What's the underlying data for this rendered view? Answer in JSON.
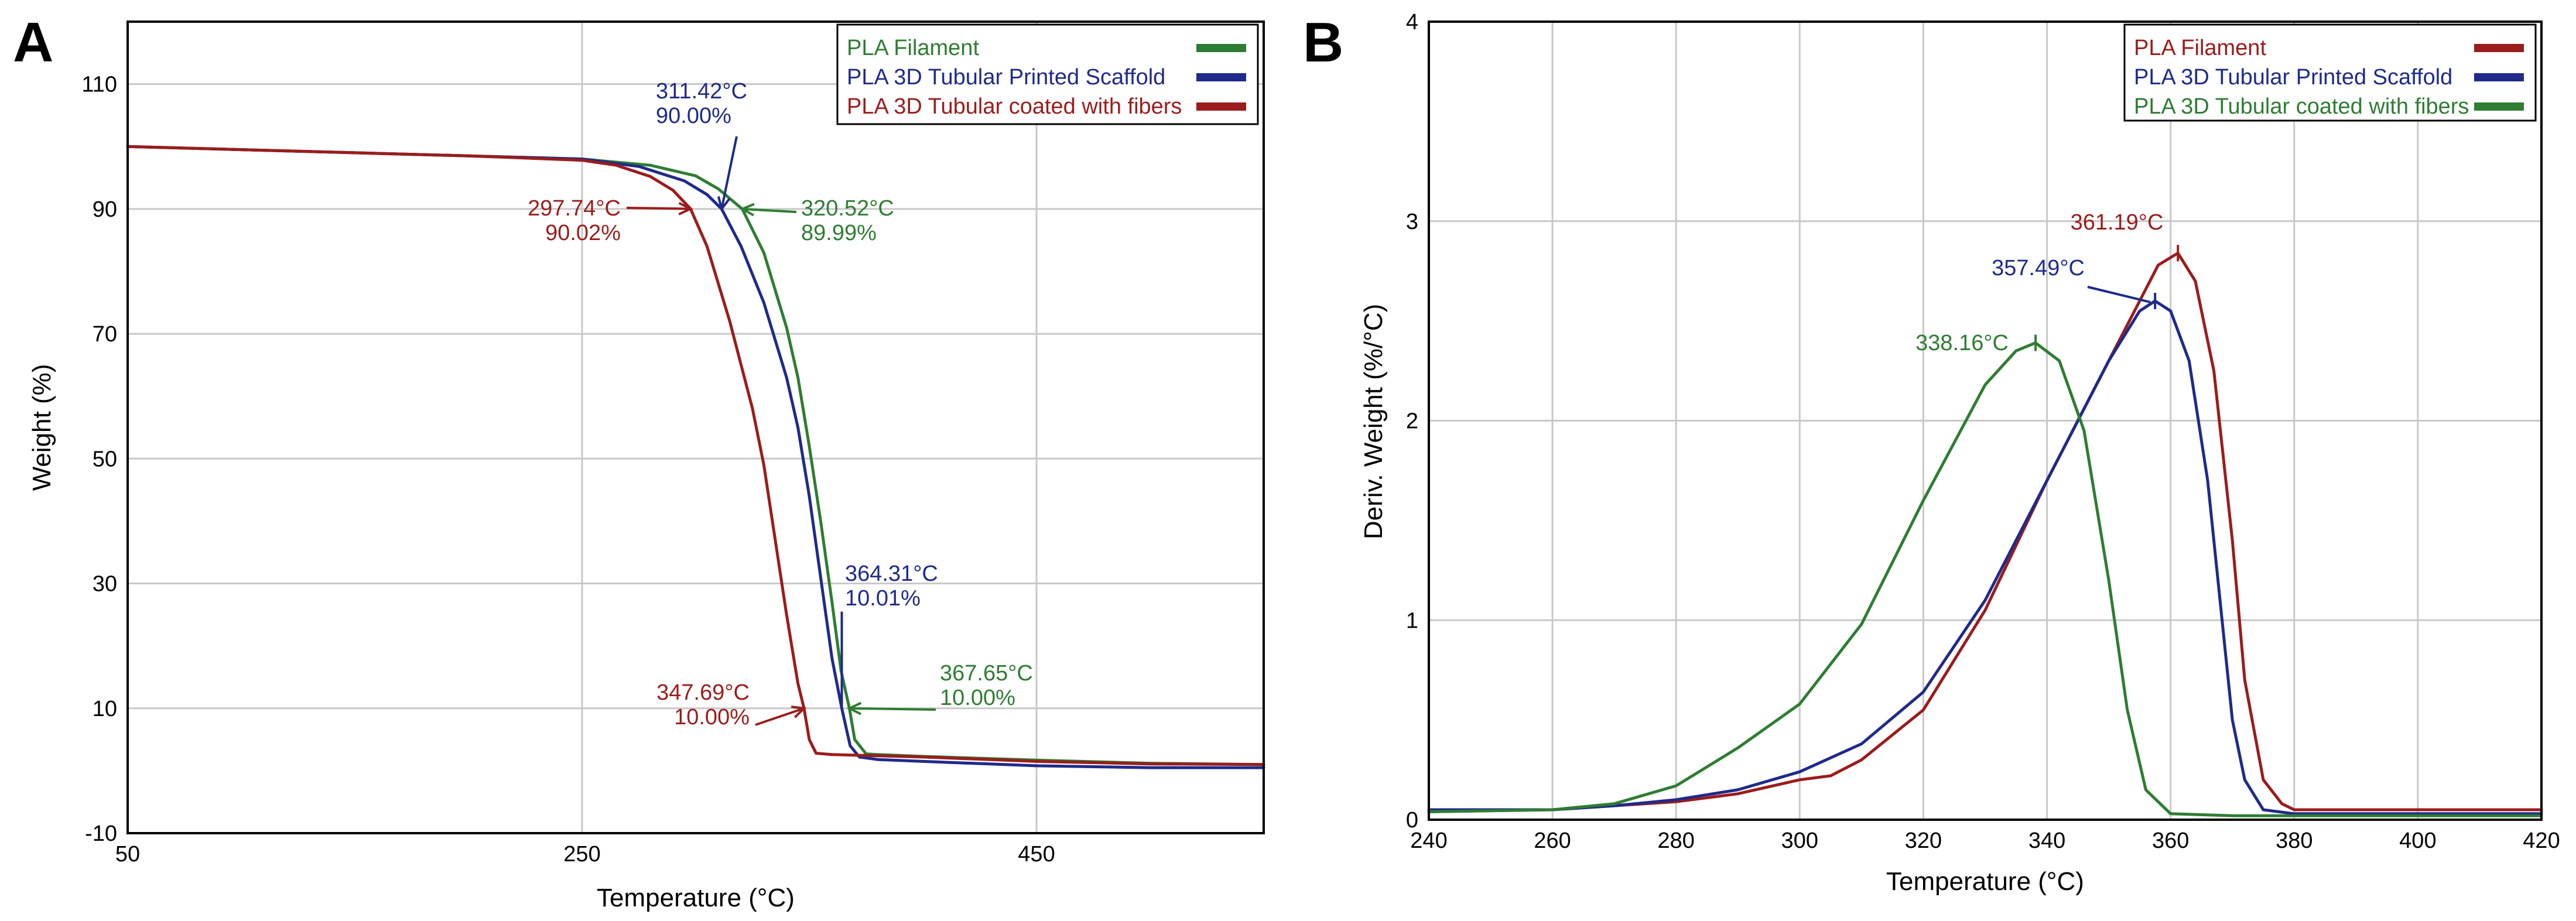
{
  "chart_data": [
    {
      "type": "line",
      "panel_label": "A",
      "xlabel": "Temperature (°C)",
      "ylabel": "Weight (%)",
      "xlim": [
        50,
        550
      ],
      "ylim": [
        -10,
        120
      ],
      "xticks": [
        50,
        250,
        450
      ],
      "yticks": [
        -10,
        10,
        30,
        50,
        70,
        90,
        110
      ],
      "legend_position": "top-right",
      "series": [
        {
          "name": "PLA Filament",
          "color": "#2e7d32",
          "x": [
            50,
            100,
            150,
            200,
            250,
            280,
            300,
            310,
            320.52,
            330,
            340,
            345,
            350,
            355,
            360,
            364,
            367.65,
            370,
            375,
            380,
            400,
            450,
            500,
            550
          ],
          "y": [
            100,
            99.5,
            99,
            98.5,
            98,
            97,
            95.3,
            93.2,
            89.99,
            83,
            71,
            63,
            52,
            40,
            27,
            16,
            10,
            5,
            2.7,
            2.6,
            2.3,
            1.7,
            1.2,
            1
          ]
        },
        {
          "name": "PLA 3D Tubular Printed Scaffold",
          "color": "#1f2a8a",
          "x": [
            50,
            100,
            150,
            200,
            250,
            275,
            295,
            305,
            311.42,
            320,
            330,
            340,
            345,
            350,
            355,
            360,
            364.31,
            368,
            372,
            380,
            400,
            450,
            500,
            550
          ],
          "y": [
            100,
            99.5,
            99,
            98.5,
            98,
            96.8,
            94.5,
            92.3,
            90,
            84,
            75,
            63,
            55,
            44,
            31,
            18,
            10.01,
            4,
            2.2,
            1.8,
            1.5,
            0.8,
            0.5,
            0.5
          ]
        },
        {
          "name": "PLA 3D Tubular coated with fibers",
          "color": "#9b1c1c",
          "x": [
            50,
            100,
            150,
            200,
            250,
            265,
            280,
            290,
            297.74,
            305,
            315,
            325,
            330,
            335,
            340,
            345,
            347.69,
            350,
            353,
            360,
            400,
            450,
            500,
            550
          ],
          "y": [
            100,
            99.5,
            99,
            98.5,
            97.8,
            97,
            95.2,
            93,
            90.02,
            84,
            72,
            58,
            49,
            37,
            25,
            14,
            10,
            5,
            2.8,
            2.6,
            2.2,
            1.5,
            1.1,
            1
          ]
        }
      ],
      "annotations": [
        {
          "label": "311.42°C",
          "sublabel": "90.00%",
          "color": "#1f2a8a",
          "x": 311.42,
          "y": 90.0
        },
        {
          "label": "297.74°C",
          "sublabel": "90.02%",
          "color": "#9b1c1c",
          "x": 297.74,
          "y": 90.02
        },
        {
          "label": "320.52°C",
          "sublabel": "89.99%",
          "color": "#2e7d32",
          "x": 320.52,
          "y": 89.99
        },
        {
          "label": "364.31°C",
          "sublabel": "10.01%",
          "color": "#1f2a8a",
          "x": 364.31,
          "y": 10.01
        },
        {
          "label": "347.69°C",
          "sublabel": "10.00%",
          "color": "#9b1c1c",
          "x": 347.69,
          "y": 10.0
        },
        {
          "label": "367.65°C",
          "sublabel": "10.00%",
          "color": "#2e7d32",
          "x": 367.65,
          "y": 10.0
        }
      ]
    },
    {
      "type": "line",
      "panel_label": "B",
      "xlabel": "Temperature (°C)",
      "ylabel": "Deriv. Weight (%/°C)",
      "xlim": [
        240,
        420
      ],
      "ylim": [
        0,
        4
      ],
      "xticks": [
        240,
        260,
        280,
        300,
        320,
        340,
        360,
        380,
        400,
        420
      ],
      "yticks": [
        0,
        1,
        2,
        3,
        4
      ],
      "legend_position": "top-right",
      "series": [
        {
          "name": "PLA Filament",
          "color": "#9b1c1c",
          "x": [
            240,
            260,
            270,
            280,
            290,
            300,
            305,
            310,
            320,
            330,
            340,
            350,
            355,
            358,
            361.19,
            364,
            367,
            370,
            372,
            375,
            378,
            380,
            400,
            420
          ],
          "y": [
            0.04,
            0.05,
            0.07,
            0.09,
            0.13,
            0.2,
            0.22,
            0.3,
            0.55,
            1.05,
            1.7,
            2.3,
            2.6,
            2.78,
            2.84,
            2.7,
            2.25,
            1.4,
            0.7,
            0.2,
            0.08,
            0.05,
            0.05,
            0.05
          ]
        },
        {
          "name": "PLA 3D Tubular Printed Scaffold",
          "color": "#1f2a8a",
          "x": [
            240,
            260,
            270,
            280,
            290,
            300,
            310,
            320,
            330,
            340,
            350,
            355,
            357.49,
            360,
            363,
            366,
            368,
            370,
            372,
            375,
            380,
            400,
            420
          ],
          "y": [
            0.05,
            0.05,
            0.07,
            0.1,
            0.15,
            0.24,
            0.38,
            0.64,
            1.1,
            1.7,
            2.3,
            2.55,
            2.6,
            2.55,
            2.3,
            1.7,
            1.1,
            0.5,
            0.2,
            0.05,
            0.03,
            0.03,
            0.03
          ]
        },
        {
          "name": "PLA 3D Tubular coated with fibers",
          "color": "#2e7d32",
          "x": [
            240,
            260,
            270,
            280,
            290,
            300,
            310,
            320,
            330,
            335,
            338.16,
            342,
            346,
            350,
            353,
            356,
            360,
            370,
            400,
            420
          ],
          "y": [
            0.04,
            0.05,
            0.08,
            0.17,
            0.36,
            0.58,
            0.98,
            1.6,
            2.18,
            2.35,
            2.39,
            2.3,
            1.95,
            1.2,
            0.55,
            0.15,
            0.03,
            0.02,
            0.02,
            0.02
          ]
        }
      ],
      "annotations": [
        {
          "label": "361.19°C",
          "color": "#9b1c1c",
          "x": 361.19,
          "y": 2.84
        },
        {
          "label": "357.49°C",
          "color": "#1f2a8a",
          "x": 357.49,
          "y": 2.6
        },
        {
          "label": "338.16°C",
          "color": "#2e7d32",
          "x": 338.16,
          "y": 2.39
        }
      ]
    }
  ]
}
